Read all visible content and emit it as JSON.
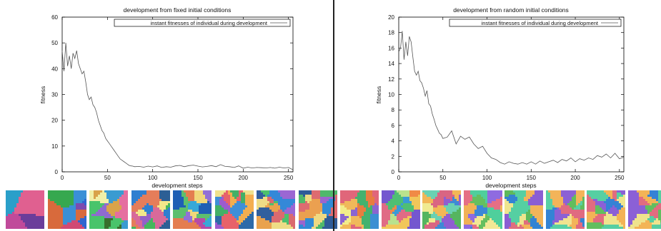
{
  "panels": [
    {
      "title": "development from fixed initial conditions",
      "legend_label": "instant fitnesses of individual during development",
      "xlabel": "development steps",
      "ylabel": "fitness",
      "thumbnail_images": [
        {
          "label": "",
          "palette": [
            "#c04a9a",
            "#6b3d9a",
            "#e06090",
            "#2a9fc9"
          ]
        },
        {
          "label": "",
          "palette": [
            "#2f66d0",
            "#d86a3c",
            "#3a8fd6",
            "#7c4bb0",
            "#36a84f",
            "#d04a74"
          ]
        },
        {
          "label": "",
          "palette": [
            "#8f6bd0",
            "#49c46b",
            "#d9a34a",
            "#e56fa0",
            "#3a9bd1",
            "#f1f0a8",
            "#386f2d"
          ]
        },
        {
          "label": "",
          "palette": [
            "#2f7fd0",
            "#e57d5a",
            "#45b75d",
            "#d86a9a",
            "#9460c9",
            "#f2e78a",
            "#2c5f95"
          ]
        },
        {
          "label": "",
          "palette": [
            "#37a8d8",
            "#b74aa7",
            "#5dbf6e",
            "#e47d50",
            "#1f5fb4",
            "#f0d77a",
            "#9270d7"
          ]
        },
        {
          "label": "",
          "palette": [
            "#3e8fd8",
            "#e7626a",
            "#43b067",
            "#f3ae4f",
            "#9d5bcf",
            "#2d6aa9",
            "#efe18e"
          ]
        },
        {
          "label": "",
          "palette": [
            "#3488d8",
            "#da6a6f",
            "#4cc06d",
            "#e9a24d",
            "#9b67d3",
            "#eedc86",
            "#315f9d"
          ]
        },
        {
          "label": "",
          "palette": [
            "#318ad6",
            "#dd6b70",
            "#4fb86b",
            "#eba050",
            "#9b65cd",
            "#efd982",
            "#2f5c98"
          ]
        }
      ]
    },
    {
      "title": "development from random initial conditions",
      "legend_label": "instant fitnesses of individual during development",
      "xlabel": "development steps",
      "ylabel": "fitness",
      "thumbnail_images": [
        {
          "label": "",
          "palette": [
            "#e0667a",
            "#43b26e",
            "#8a65d0",
            "#f0b95a",
            "#3c8fd3",
            "#e87d3f",
            "#f2ed8a"
          ]
        },
        {
          "label": "",
          "palette": [
            "#7457cf",
            "#e06b85",
            "#4fbf73",
            "#f1c65a",
            "#3a9ad7",
            "#f08a46",
            "#b9e28d"
          ]
        },
        {
          "label": "",
          "palette": [
            "#6ad1b2",
            "#d96582",
            "#8f5ed1",
            "#f2b756",
            "#3e89d6",
            "#55b55f",
            "#f0ea90"
          ]
        },
        {
          "label": "",
          "palette": [
            "#4fcf9c",
            "#8f6be0",
            "#e56f85",
            "#f1b155",
            "#3b87d6",
            "#65bf5f",
            "#f3e895"
          ]
        },
        {
          "label": "",
          "palette": [
            "#55cfa2",
            "#8a5ed3",
            "#df6e7e",
            "#f2b45a",
            "#3383d3",
            "#5eb95c",
            "#eee58e"
          ]
        },
        {
          "label": "",
          "palette": [
            "#58d0a4",
            "#8c61d5",
            "#e06b80",
            "#f3b459",
            "#3483d5",
            "#61bd5d",
            "#f1e38f"
          ]
        },
        {
          "label": "",
          "palette": [
            "#56cfa2",
            "#8b60d6",
            "#e16c7f",
            "#f3b356",
            "#3582d5",
            "#62be5f",
            "#efe48e"
          ]
        },
        {
          "label": "",
          "palette": [
            "#56cea1",
            "#8b60d6",
            "#e16c80",
            "#f3b456",
            "#3582d5",
            "#62be5f",
            "#efe38d"
          ]
        }
      ]
    }
  ],
  "chart_data": [
    {
      "type": "line",
      "title": "development from fixed initial conditions",
      "xlabel": "development steps",
      "ylabel": "fitness",
      "xlim": [
        0,
        255
      ],
      "ylim": [
        0,
        60
      ],
      "xticks": [
        0,
        50,
        100,
        150,
        200,
        250
      ],
      "yticks": [
        0,
        10,
        20,
        30,
        40,
        50,
        60
      ],
      "grid": false,
      "legend_position": "top-right",
      "series": [
        {
          "name": "instant fitnesses of individual during development",
          "color": "#555555",
          "x": [
            0,
            2,
            4,
            6,
            8,
            10,
            12,
            14,
            16,
            18,
            20,
            22,
            24,
            26,
            28,
            30,
            32,
            34,
            36,
            38,
            40,
            42,
            44,
            46,
            48,
            50,
            52,
            54,
            56,
            58,
            60,
            62,
            64,
            66,
            68,
            70,
            72,
            74,
            76,
            78,
            80,
            85,
            90,
            95,
            100,
            105,
            110,
            115,
            120,
            125,
            130,
            135,
            140,
            145,
            150,
            155,
            160,
            165,
            170,
            175,
            180,
            185,
            190,
            195,
            200,
            205,
            210,
            215,
            220,
            225,
            230,
            235,
            240,
            245,
            250,
            255
          ],
          "y": [
            47,
            39,
            50,
            41,
            45,
            40,
            46,
            44,
            47,
            42,
            40,
            38,
            39,
            35,
            30,
            28,
            29,
            26,
            25,
            23,
            20,
            18,
            16,
            15,
            13,
            12,
            11,
            10,
            9,
            8,
            7,
            6,
            5,
            4.5,
            4,
            3.5,
            3,
            2.5,
            2.3,
            2.2,
            2.0,
            2.1,
            1.8,
            2.2,
            1.9,
            2.3,
            1.7,
            2.0,
            1.8,
            2.3,
            2.5,
            2.0,
            2.4,
            2.6,
            2.2,
            1.9,
            2.1,
            2.4,
            2.0,
            2.8,
            2.1,
            2.0,
            1.7,
            2.3,
            1.4,
            1.8,
            1.5,
            1.7,
            1.6,
            1.5,
            1.7,
            1.4,
            1.8,
            1.5,
            1.7,
            0.8
          ]
        }
      ]
    },
    {
      "type": "line",
      "title": "development from random initial conditions",
      "xlabel": "development steps",
      "ylabel": "fitness",
      "xlim": [
        0,
        255
      ],
      "ylim": [
        0,
        20
      ],
      "xticks": [
        0,
        50,
        100,
        150,
        200,
        250
      ],
      "yticks": [
        0,
        2,
        4,
        6,
        8,
        10,
        12,
        14,
        16,
        18,
        20
      ],
      "grid": false,
      "legend_position": "top-right",
      "series": [
        {
          "name": "instant fitnesses of individual during development",
          "color": "#555555",
          "x": [
            0,
            2,
            4,
            6,
            8,
            10,
            12,
            14,
            16,
            18,
            20,
            22,
            24,
            26,
            28,
            30,
            32,
            34,
            36,
            38,
            40,
            42,
            44,
            46,
            48,
            50,
            55,
            60,
            65,
            70,
            75,
            80,
            85,
            90,
            95,
            100,
            105,
            110,
            115,
            120,
            125,
            130,
            135,
            140,
            145,
            150,
            155,
            160,
            165,
            170,
            175,
            180,
            185,
            190,
            195,
            200,
            205,
            210,
            215,
            220,
            225,
            230,
            235,
            240,
            245,
            250,
            255
          ],
          "y": [
            15.5,
            16.0,
            18.2,
            14.5,
            16.8,
            15.0,
            17.5,
            16.8,
            14.8,
            13.0,
            12.5,
            13.0,
            11.8,
            11.5,
            10.8,
            9.8,
            10.5,
            8.8,
            8.5,
            7.5,
            6.8,
            6.0,
            5.5,
            5.0,
            4.8,
            4.3,
            4.5,
            5.3,
            3.6,
            4.6,
            4.2,
            4.5,
            3.6,
            3.0,
            3.3,
            2.4,
            1.8,
            1.6,
            1.2,
            1.0,
            1.3,
            1.1,
            1.0,
            1.2,
            1.0,
            1.3,
            1.0,
            1.4,
            1.1,
            1.3,
            1.5,
            1.2,
            1.6,
            1.4,
            1.8,
            1.3,
            1.7,
            1.5,
            1.8,
            1.6,
            2.1,
            1.9,
            2.3,
            1.8,
            2.4,
            1.7,
            1.9
          ]
        }
      ]
    }
  ]
}
